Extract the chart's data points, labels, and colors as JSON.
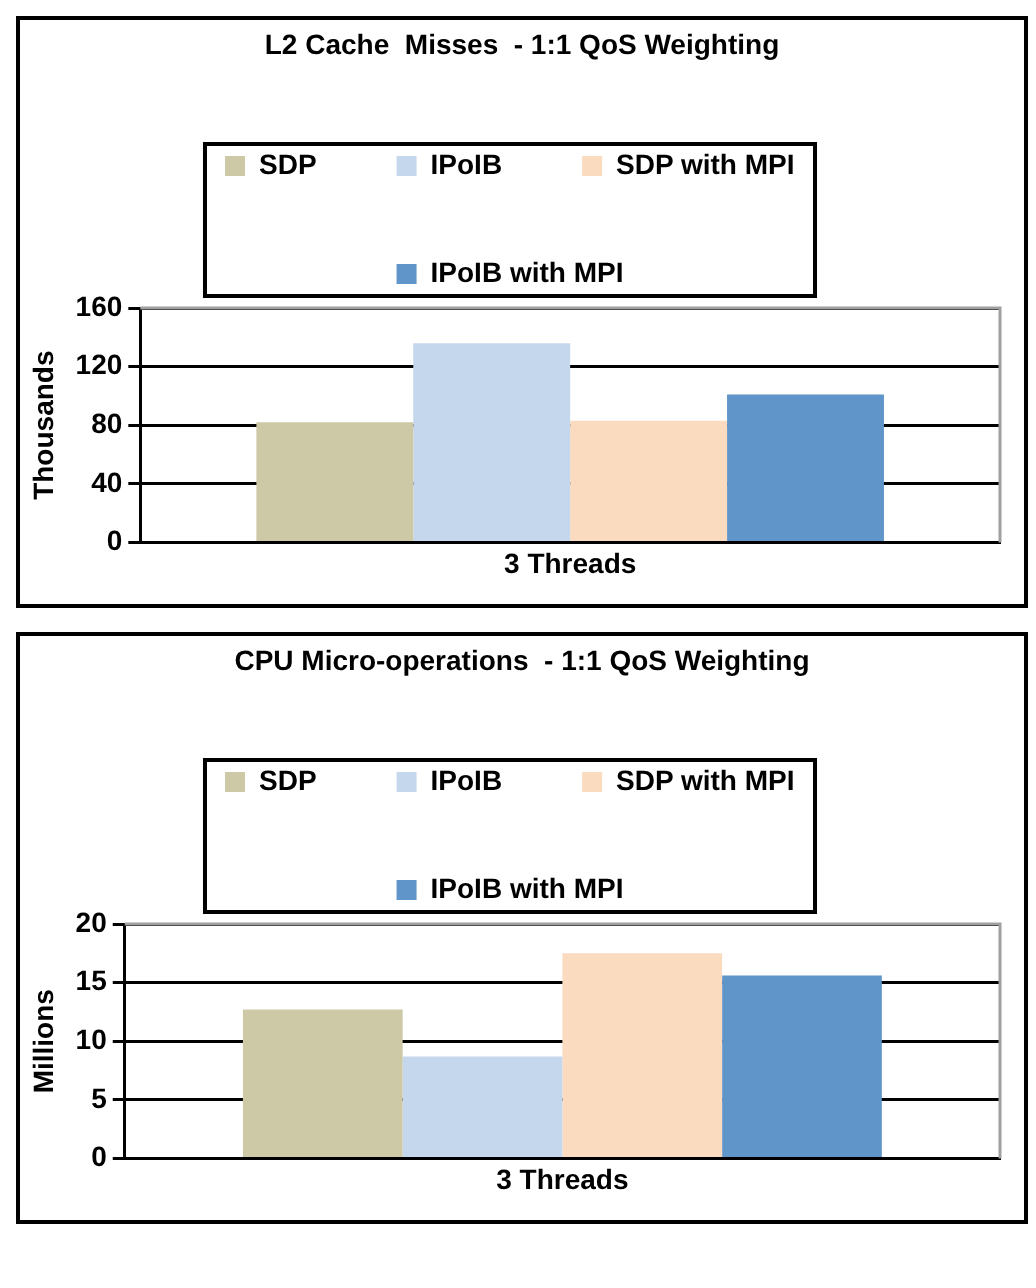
{
  "chart_data": [
    {
      "type": "bar",
      "title": "L2 Cache  Misses  - 1:1 QoS Weighting",
      "ylabel": "Thousands",
      "categories": [
        "3 Threads"
      ],
      "series": [
        {
          "name": "SDP",
          "color": "#cdc8a6",
          "values": [
            82
          ]
        },
        {
          "name": "IPoIB",
          "color": "#c5d7ec",
          "values": [
            136
          ]
        },
        {
          "name": "SDP with MPI",
          "color": "#fadbbf",
          "values": [
            83
          ]
        },
        {
          "name": "IPoIB with MPI",
          "color": "#5f95c8",
          "values": [
            101
          ]
        }
      ],
      "ylim": [
        0,
        160
      ],
      "yticks": [
        0,
        40,
        80,
        120,
        160
      ],
      "grid": "y",
      "legend": "top"
    },
    {
      "type": "bar",
      "title": "CPU Micro-operations  - 1:1 QoS Weighting",
      "ylabel": "Millions",
      "categories": [
        "3 Threads"
      ],
      "series": [
        {
          "name": "SDP",
          "color": "#cdc8a6",
          "values": [
            12.7
          ]
        },
        {
          "name": "IPoIB",
          "color": "#c5d7ec",
          "values": [
            8.7
          ]
        },
        {
          "name": "SDP with MPI",
          "color": "#fadbbf",
          "values": [
            17.5
          ]
        },
        {
          "name": "IPoIB with MPI",
          "color": "#5f95c8",
          "values": [
            15.6
          ]
        }
      ],
      "ylim": [
        0,
        20
      ],
      "yticks": [
        0,
        5,
        10,
        15,
        20
      ],
      "grid": "y",
      "legend": "top"
    }
  ]
}
